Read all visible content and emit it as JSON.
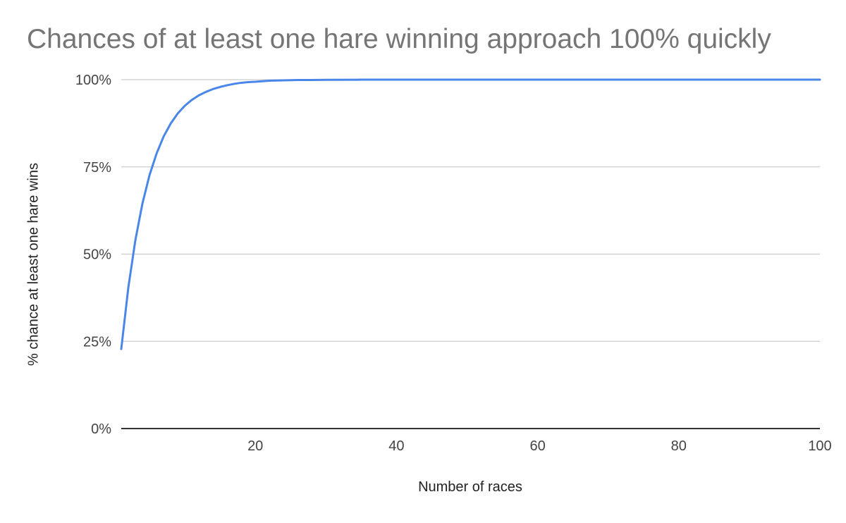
{
  "chart_data": {
    "type": "line",
    "title": "Chances of at least one hare winning approach 100% quickly",
    "xlabel": "Number of races",
    "ylabel": "% chance at least one hare wins",
    "xlim": [
      1,
      100
    ],
    "ylim": [
      0,
      100
    ],
    "x_ticks": [
      20,
      40,
      60,
      80,
      100
    ],
    "y_ticks": [
      0,
      25,
      50,
      75,
      100
    ],
    "y_tick_format": "percent",
    "grid": true,
    "legend": "none",
    "series": [
      {
        "color": "#4a86e8",
        "x": [
          1,
          2,
          3,
          4,
          5,
          6,
          7,
          8,
          9,
          10,
          11,
          12,
          13,
          14,
          15,
          16,
          17,
          18,
          19,
          20,
          22,
          24,
          26,
          28,
          30,
          35,
          40,
          50,
          60,
          70,
          80,
          90,
          100
        ],
        "y": [
          22.8,
          40.4,
          54.0,
          64.5,
          72.6,
          78.8,
          83.7,
          87.4,
          90.3,
          92.5,
          94.2,
          95.5,
          96.5,
          97.3,
          97.9,
          98.4,
          98.8,
          99.1,
          99.3,
          99.4,
          99.7,
          99.8,
          99.9,
          99.9,
          99.95,
          99.99,
          100,
          100,
          100,
          100,
          100,
          100,
          100
        ]
      }
    ]
  }
}
